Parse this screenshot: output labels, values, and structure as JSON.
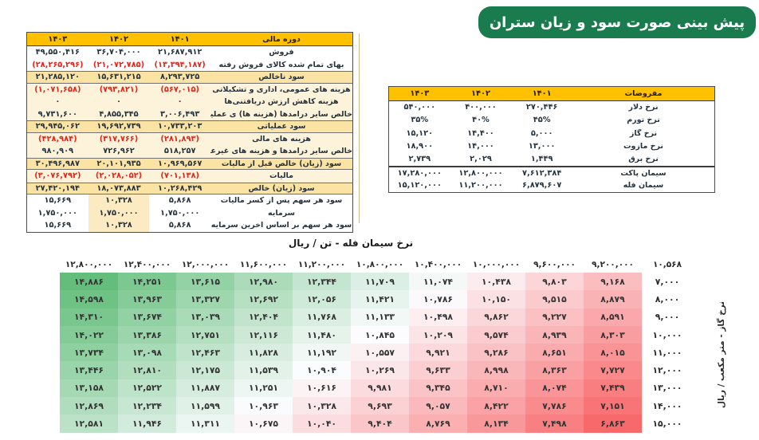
{
  "banner": {
    "title": "پیش بینی صورت سود و زیان ستران"
  },
  "colors": {
    "banner_green": "#1a7b4e",
    "header_orange": "#FFC000",
    "subtotal_row_bg": "#FBE3A4",
    "light_row_bg": "#FDF3DA",
    "highlight_1402_bg": "#FCEAC2",
    "negative_red": "#E5231B",
    "divider_tan": "#C9BC92"
  },
  "income_statement": {
    "header": {
      "label": "دوره مالی",
      "y1401": "۱۴۰۱",
      "y1402": "۱۴۰۲",
      "y1403": "۱۴۰۳"
    },
    "rows": [
      {
        "label": "فروش",
        "v1401": "۲۱,۶۸۷,۹۱۲",
        "v1402": "۳۶,۷۰۴,۰۰۰",
        "v1403": "۴۹,۵۵۰,۴۱۶",
        "style": "plain"
      },
      {
        "label": "بهای تمام شده کالای فروش رفته",
        "v1401": "(۱۳,۳۹۴,۱۸۷)",
        "v1402": "(۲۱,۰۷۲,۷۸۵)",
        "v1403": "(۲۸,۲۶۵,۲۹۶)",
        "style": "plain"
      },
      {
        "label": "سود ناخالص",
        "v1401": "۸,۲۹۳,۷۲۵",
        "v1402": "۱۵,۶۳۱,۲۱۵",
        "v1403": "۲۱,۲۸۵,۱۲۰",
        "style": "sub"
      },
      {
        "label": "هزینه های عمومی، اداری و تشکیلاتی",
        "v1401": "(۵۶۷,۰۱۵)",
        "v1402": "(۷۹۳,۸۲۱)",
        "v1403": "(۱,۰۷۱,۶۵۸)",
        "style": "mid"
      },
      {
        "label": "هزینه کاهش ارزش دریافتنی‌ها",
        "v1401": "۰",
        "v1402": "۰",
        "v1403": "۰",
        "style": "mid"
      },
      {
        "label": "خالص سایر درامدها (هزینه ها) ی عملیاتی",
        "v1401": "۳,۰۰۶,۴۹۳",
        "v1402": "۴,۸۵۵,۳۴۵",
        "v1403": "۹,۷۳۱,۶۰۰",
        "style": "mid"
      },
      {
        "label": "سود عملیاتی",
        "v1401": "۱۰,۷۳۳,۲۰۳",
        "v1402": "۱۹,۶۹۲,۷۳۹",
        "v1403": "۲۹,۹۴۵,۰۶۲",
        "style": "sub"
      },
      {
        "label": "هزینه های مالی",
        "v1401": "(۲۸۱,۸۹۳)",
        "v1402": "(۳۱۷,۷۶۶)",
        "v1403": "(۴۲۸,۹۸۴)",
        "style": "mid"
      },
      {
        "label": "خالص سایر درامدها و هزینه های غیرعملیاتی",
        "v1401": "۵۱۸,۲۵۷",
        "v1402": "۷۲۶,۹۶۲",
        "v1403": "۹۸۰,۹۰۹",
        "style": "mid"
      },
      {
        "label": "سود (زیان) خالص قبل از مالیات",
        "v1401": "۱۰,۹۶۹,۵۶۷",
        "v1402": "۲۰,۱۰۱,۹۳۵",
        "v1403": "۳۰,۴۹۶,۹۸۷",
        "style": "sub"
      },
      {
        "label": "مالیات",
        "v1401": "(۷۰۱,۱۳۸)",
        "v1402": "(۲,۰۲۸,۰۵۲)",
        "v1403": "(۳,۰۷۶,۷۹۲)",
        "style": "mid"
      },
      {
        "label": "سود (زیان) خالص",
        "v1401": "۱۰,۲۶۸,۴۲۹",
        "v1402": "۱۸,۰۷۳,۸۸۳",
        "v1403": "۲۷,۴۲۰,۱۹۴",
        "style": "sub"
      },
      {
        "label": "سود هر سهم پس از کسر مالیات",
        "v1401": "۵,۸۶۸",
        "v1402": "۱۰,۳۲۸",
        "v1403": "۱۵,۶۶۹",
        "style": "plain",
        "hl1402": true
      },
      {
        "label": "سرمایه",
        "v1401": "۱,۷۵۰,۰۰۰",
        "v1402": "۱,۷۵۰,۰۰۰",
        "v1403": "۱,۷۵۰,۰۰۰",
        "style": "plain",
        "hl1402": true
      },
      {
        "label": "سود هر سهم بر اساس آخرین سرمایه",
        "v1401": "۵,۸۶۸",
        "v1402": "۱۰,۳۲۸",
        "v1403": "۱۵,۶۶۹",
        "style": "plain",
        "hl1402": true
      }
    ]
  },
  "assumptions": {
    "header": {
      "label": "مفروضات",
      "y1401": "۱۴۰۱",
      "y1402": "۱۴۰۲",
      "y1403": "۱۴۰۳"
    },
    "rows": [
      {
        "label": "نرخ دلار",
        "v1401": "۲۷۰,۴۴۶",
        "v1402": "۴۰۰,۰۰۰",
        "v1403": "۵۴۰,۰۰۰",
        "style": "plain"
      },
      {
        "label": "نرخ تورم",
        "v1401": "۴۵%",
        "v1402": "۴۰%",
        "v1403": "۳۵%",
        "style": "plain"
      },
      {
        "label": "نرخ گاز",
        "v1401": "۵,۰۰۰",
        "v1402": "۱۴,۴۰۰",
        "v1403": "۱۵,۱۲۰",
        "style": "plain"
      },
      {
        "label": "نرخ مازوت",
        "v1401": "۱۳,۰۰۰",
        "v1402": "۱۴,۰۰۰",
        "v1403": "۱۸,۹۰۰",
        "style": "plain"
      },
      {
        "label": "نرخ برق",
        "v1401": "۱,۴۴۹",
        "v1402": "۲,۰۲۹",
        "v1403": "۲,۷۳۹",
        "style": "plain"
      },
      {
        "label": "سیمان پاکت",
        "v1401": "۷,۶۱۲,۳۸۴",
        "v1402": "۱۲,۸۰۰,۰۰۰",
        "v1403": "۱۷,۲۸۰,۰۰۰",
        "style": "plain",
        "sep": true
      },
      {
        "label": "سیمان فله",
        "v1401": "۶,۸۷۹,۶۰۷",
        "v1402": "۱۱,۲۰۰,۰۰۰",
        "v1403": "۱۵,۱۲۰,۰۰۰",
        "style": "plain"
      }
    ]
  },
  "chart_data": {
    "type": "heatmap",
    "title": "نرخ سیمان فله - تن / ریال",
    "side_label": "نرخ گاز - متر مکعب / ریال",
    "corner_value": 10568,
    "columns_cement_price": [
      12800000,
      12400000,
      12000000,
      11600000,
      11200000,
      10800000,
      10400000,
      10000000,
      9600000,
      9200000
    ],
    "rows_gas_rate": [
      7000,
      8000,
      9000,
      10000,
      11000,
      12000,
      13000,
      14000,
      15000
    ],
    "values": [
      [
        14886,
        14251,
        13615,
        12980,
        12344,
        11709,
        11074,
        10438,
        9803,
        9168
      ],
      [
        14598,
        13963,
        13327,
        12692,
        12056,
        11421,
        10786,
        10150,
        9515,
        8879
      ],
      [
        14310,
        13674,
        13039,
        12404,
        11768,
        11133,
        10498,
        9862,
        9227,
        8591
      ],
      [
        14022,
        13386,
        12751,
        12116,
        11480,
        10845,
        10209,
        9574,
        8939,
        8303
      ],
      [
        13734,
        13098,
        12463,
        11828,
        11192,
        10557,
        9921,
        9286,
        8651,
        8015
      ],
      [
        13446,
        12810,
        12175,
        11539,
        10904,
        10269,
        9633,
        8998,
        8363,
        7727
      ],
      [
        13158,
        12522,
        11887,
        11251,
        10616,
        9981,
        9345,
        8710,
        8074,
        7439
      ],
      [
        12869,
        12234,
        11599,
        10963,
        10328,
        9693,
        9057,
        8422,
        7786,
        7151
      ],
      [
        12581,
        11946,
        11311,
        10675,
        10040,
        9404,
        8769,
        8134,
        7498,
        6863
      ]
    ],
    "color_scale": {
      "min": "#F8696B",
      "mid": "#FCFCFF",
      "max": "#63BE7B"
    },
    "legend_position": "none",
    "grid": false
  }
}
